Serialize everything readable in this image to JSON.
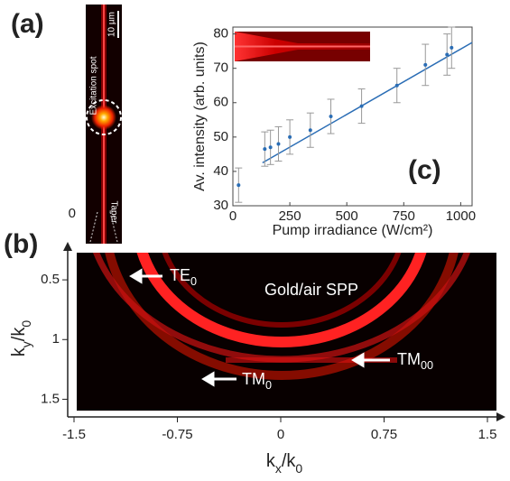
{
  "labels": {
    "a": "(a)",
    "b": "(b)",
    "c": "(c)"
  },
  "panel_a": {
    "scale_bar": "10 µm",
    "excitation": "Excitation spot",
    "taper": "Taper",
    "origin": "0"
  },
  "panel_b": {
    "xlim": [
      -1.5,
      1.5
    ],
    "ylim": [
      0.28,
      1.58
    ],
    "xticks": [
      -1.5,
      -0.75,
      0,
      0.75,
      1.5
    ],
    "yticks": [
      0.5,
      1,
      1.5
    ],
    "xlabel": [
      "k",
      "x",
      "/k",
      "0"
    ],
    "ylabel": [
      "k",
      "y",
      "/k",
      "0"
    ],
    "annotations": [
      {
        "text": "TE",
        "sub": "0"
      },
      {
        "text": "Gold/air SPP"
      },
      {
        "text": "TM",
        "sub": "00"
      },
      {
        "text": "TM",
        "sub": "0"
      }
    ]
  },
  "chart_data": {
    "type": "scatter",
    "xlabel": "Pump irradiance (W/cm²)",
    "ylabel": "Av. intensity (arb. units)",
    "xlim": [
      0,
      1050
    ],
    "ylim": [
      30,
      82
    ],
    "xticks": [
      0,
      250,
      500,
      750,
      1000
    ],
    "yticks": [
      30,
      40,
      50,
      60,
      70,
      80
    ],
    "series": [
      {
        "color": "#2a6db5",
        "x": [
          25,
          140,
          165,
          200,
          250,
          340,
          430,
          565,
          720,
          845,
          940,
          960
        ],
        "values": [
          36,
          46.5,
          47,
          48,
          50,
          52,
          56,
          59,
          65,
          71,
          74,
          76
        ],
        "errors": [
          5,
          5,
          5,
          5,
          5,
          5,
          5,
          5,
          5,
          6,
          6,
          6
        ]
      }
    ],
    "fit": {
      "color": "#2a6db5",
      "x": [
        130,
        1050
      ],
      "values": [
        42.5,
        77.5
      ]
    }
  }
}
